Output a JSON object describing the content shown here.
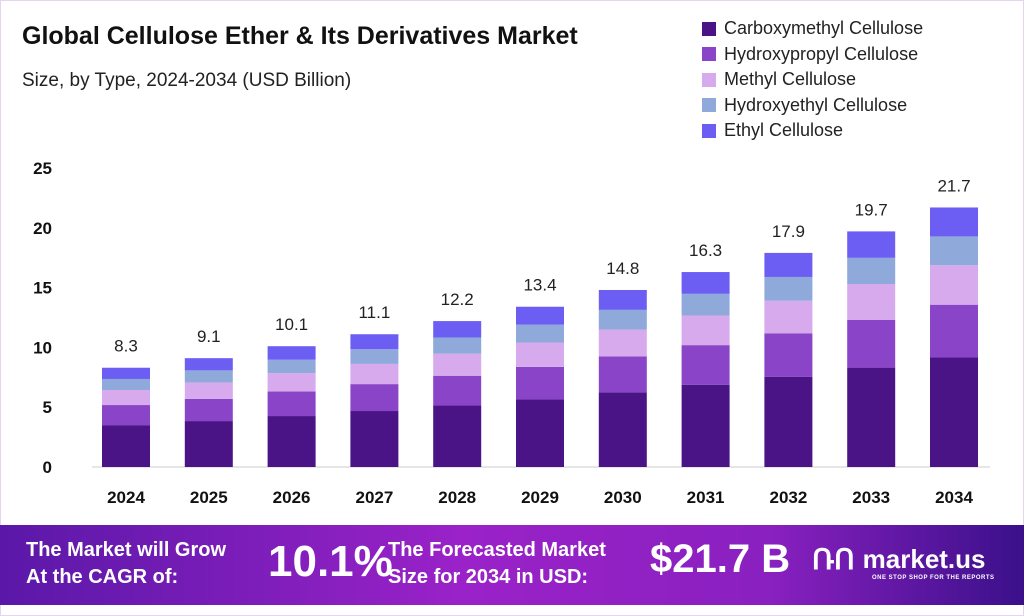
{
  "chart_data": {
    "type": "bar",
    "stacked": true,
    "title": "Global Cellulose Ether & Its Derivatives Market",
    "subtitle": "Size, by Type, 2024-2034 (USD Billion)",
    "categories": [
      "2024",
      "2025",
      "2026",
      "2027",
      "2028",
      "2029",
      "2030",
      "2031",
      "2032",
      "2033",
      "2034"
    ],
    "totals": [
      "8.3",
      "9.1",
      "10.1",
      "11.1",
      "12.2",
      "13.4",
      "14.8",
      "16.3",
      "17.9",
      "19.7",
      "21.7"
    ],
    "series": [
      {
        "name": "Carboxymethyl Cellulose",
        "color": "#4a1486",
        "values": [
          3.5,
          3.84,
          4.26,
          4.68,
          5.15,
          5.65,
          6.25,
          6.88,
          7.55,
          8.31,
          9.16
        ]
      },
      {
        "name": "Hydroxypropyl Cellulose",
        "color": "#8a44c8",
        "values": [
          1.68,
          1.85,
          2.05,
          2.25,
          2.48,
          2.72,
          3.0,
          3.31,
          3.63,
          4.0,
          4.41
        ]
      },
      {
        "name": "Methyl Cellulose",
        "color": "#d6aaec",
        "values": [
          1.26,
          1.38,
          1.54,
          1.69,
          1.85,
          2.04,
          2.25,
          2.48,
          2.72,
          2.99,
          3.3
        ]
      },
      {
        "name": "Hydroxyethyl Cellulose",
        "color": "#8fa9da",
        "values": [
          0.92,
          1.01,
          1.12,
          1.23,
          1.35,
          1.49,
          1.64,
          1.81,
          1.99,
          2.19,
          2.41
        ]
      },
      {
        "name": "Ethyl Cellulose",
        "color": "#6c5ef2",
        "values": [
          0.94,
          1.02,
          1.13,
          1.25,
          1.37,
          1.5,
          1.66,
          1.82,
          2.01,
          2.21,
          2.42
        ]
      }
    ],
    "yticks": [
      "0",
      "5",
      "10",
      "15",
      "20",
      "25"
    ],
    "ylim": [
      0,
      25
    ],
    "grid": false,
    "legend_position": "top-right"
  },
  "footer": {
    "cagr_label_1": "The Market will Grow",
    "cagr_label_2": "At the CAGR of:",
    "cagr_value": "10.1%",
    "forecast_label_1": "The Forecasted Market",
    "forecast_label_2": "Size for 2034 in USD:",
    "forecast_value": "$21.7 B",
    "logo_text": "market.us",
    "logo_tagline": "ONE STOP SHOP FOR THE REPORTS"
  }
}
